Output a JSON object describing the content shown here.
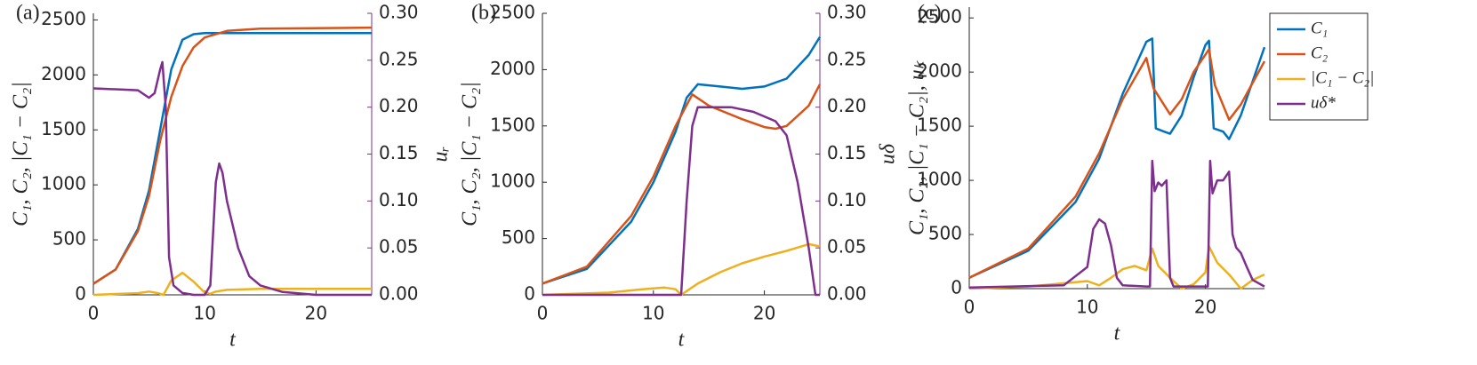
{
  "chart_data": [
    {
      "type": "line",
      "label": "(a)",
      "xlabel": "t",
      "ylabel": "C₁, C₂, |C₁ − C₂|",
      "y2label": "uᵣ",
      "xlim": [
        0,
        25
      ],
      "xticks": [
        0,
        10,
        20
      ],
      "ylim": [
        0,
        2560
      ],
      "yticks": [
        0,
        500,
        1000,
        1500,
        2000,
        2500
      ],
      "y2lim": [
        0,
        0.3
      ],
      "y2ticks": [
        {
          "value": 0,
          "label": "0.00"
        },
        {
          "value": 0.05,
          "label": "0.05"
        },
        {
          "value": 0.1,
          "label": "0.10"
        },
        {
          "value": 0.15,
          "label": "0.15"
        },
        {
          "value": 0.2,
          "label": "0.20"
        },
        {
          "value": 0.25,
          "label": "0.25"
        },
        {
          "value": 0.3,
          "label": "0.30"
        }
      ],
      "series": [
        {
          "color": "#0072BD",
          "x": [
            0,
            2,
            4,
            5,
            6,
            7,
            8,
            9,
            10,
            15,
            25
          ],
          "values": [
            100,
            230,
            600,
            950,
            1500,
            2050,
            2320,
            2370,
            2380,
            2380,
            2380
          ]
        },
        {
          "color": "#D95319",
          "x": [
            0,
            2,
            4,
            5,
            6,
            7,
            8,
            9,
            10,
            12,
            15,
            25
          ],
          "values": [
            100,
            230,
            580,
            900,
            1400,
            1800,
            2080,
            2250,
            2340,
            2400,
            2420,
            2430
          ]
        },
        {
          "color": "#EDB120",
          "x": [
            0,
            4,
            5,
            5.8,
            6.3,
            7,
            8,
            9,
            10,
            10.5,
            11,
            12,
            15,
            25
          ],
          "values": [
            0,
            15,
            30,
            15,
            0,
            130,
            200,
            120,
            20,
            10,
            30,
            45,
            55,
            55
          ]
        },
        {
          "color": "#7E2F8E",
          "axis": "y2",
          "x": [
            0,
            4,
            5,
            5.5,
            6,
            6.2,
            6.5,
            6.8,
            7.2,
            8,
            9,
            10,
            10.5,
            11,
            11.3,
            11.6,
            12,
            13,
            14,
            15,
            17,
            20,
            25
          ],
          "values": [
            0.22,
            0.218,
            0.21,
            0.215,
            0.24,
            0.248,
            0.2,
            0.04,
            0.01,
            0.002,
            0,
            0,
            0.01,
            0.12,
            0.14,
            0.13,
            0.1,
            0.05,
            0.02,
            0.01,
            0.003,
            0,
            0
          ]
        }
      ]
    },
    {
      "type": "line",
      "label": "(b)",
      "xlabel": "t",
      "ylabel": "C₁, C₂, |C₁ − C₂|",
      "y2label": "uδ",
      "xlim": [
        0,
        25
      ],
      "xticks": [
        0,
        10,
        20
      ],
      "ylim": [
        0,
        2500
      ],
      "yticks": [
        0,
        500,
        1000,
        1500,
        2000,
        2500
      ],
      "y2lim": [
        0,
        0.3
      ],
      "y2ticks": [
        {
          "value": 0,
          "label": "0.00"
        },
        {
          "value": 0.05,
          "label": "0.05"
        },
        {
          "value": 0.1,
          "label": "0.10"
        },
        {
          "value": 0.15,
          "label": "0.15"
        },
        {
          "value": 0.2,
          "label": "0.20"
        },
        {
          "value": 0.25,
          "label": "0.25"
        },
        {
          "value": 0.3,
          "label": "0.30"
        }
      ],
      "series": [
        {
          "color": "#0072BD",
          "x": [
            0,
            4,
            8,
            10,
            12,
            13,
            14,
            16,
            18,
            20,
            22,
            24,
            25
          ],
          "values": [
            100,
            230,
            650,
            1000,
            1450,
            1750,
            1870,
            1850,
            1830,
            1850,
            1920,
            2130,
            2290
          ]
        },
        {
          "color": "#D95319",
          "x": [
            0,
            4,
            8,
            10,
            12,
            13.5,
            15,
            18,
            20,
            21,
            22,
            24,
            25
          ],
          "values": [
            100,
            250,
            700,
            1050,
            1500,
            1780,
            1680,
            1560,
            1490,
            1475,
            1500,
            1680,
            1870
          ]
        },
        {
          "color": "#EDB120",
          "x": [
            0,
            6,
            9,
            11,
            12,
            12.5,
            14,
            16,
            18,
            20,
            22,
            24,
            25
          ],
          "values": [
            0,
            20,
            50,
            65,
            50,
            0,
            100,
            200,
            280,
            340,
            390,
            450,
            430
          ]
        },
        {
          "color": "#7E2F8E",
          "axis": "y2",
          "x": [
            0,
            10,
            12.5,
            13,
            13.5,
            14,
            17,
            19,
            21,
            22,
            23,
            24,
            24.6,
            25
          ],
          "values": [
            0,
            0,
            0,
            0.1,
            0.18,
            0.2,
            0.2,
            0.195,
            0.185,
            0.17,
            0.12,
            0.05,
            0,
            0
          ]
        }
      ]
    },
    {
      "type": "line",
      "label": "(c)",
      "xlabel": "t",
      "ylabel": "C₁, C₂, |C₁ − C₂|, uₖ",
      "xlim": [
        0,
        25
      ],
      "xticks": [
        0,
        10,
        20
      ],
      "ylim": [
        0,
        2600
      ],
      "yticks": [
        0,
        500,
        1000,
        1500,
        2000,
        2500
      ],
      "legend": "outside-right",
      "series": [
        {
          "name": "C₁",
          "color": "#0072BD",
          "x": [
            0,
            5,
            9,
            11,
            13,
            15,
            15.5,
            15.8,
            16.5,
            17,
            18,
            19,
            20,
            20.3,
            20.7,
            21.5,
            22,
            23,
            25
          ],
          "values": [
            100,
            350,
            800,
            1200,
            1800,
            2280,
            2310,
            1480,
            1450,
            1430,
            1600,
            1950,
            2250,
            2290,
            1480,
            1450,
            1380,
            1600,
            2230
          ]
        },
        {
          "name": "C₂",
          "color": "#D95319",
          "x": [
            0,
            5,
            9,
            11,
            13,
            15,
            15.6,
            17,
            18,
            19,
            20.3,
            20.8,
            22,
            23,
            25
          ],
          "values": [
            100,
            370,
            850,
            1250,
            1750,
            2130,
            1850,
            1610,
            1750,
            2000,
            2210,
            1880,
            1560,
            1700,
            2100
          ]
        },
        {
          "name": "|C₁ − C₂|",
          "color": "#EDB120",
          "x": [
            0,
            5,
            9,
            10,
            11,
            12,
            13,
            14,
            15,
            15.5,
            16,
            17,
            18,
            19,
            20,
            20.3,
            21,
            22,
            23,
            24,
            25
          ],
          "values": [
            0,
            20,
            60,
            70,
            30,
            100,
            180,
            210,
            170,
            370,
            210,
            100,
            0,
            40,
            150,
            390,
            240,
            130,
            0,
            80,
            130
          ]
        },
        {
          "name": "uδ*",
          "color": "#7E2F8E",
          "x": [
            0,
            8,
            10,
            10.5,
            11,
            11.5,
            12,
            12.5,
            13,
            15,
            15.3,
            15.5,
            15.7,
            16,
            16.3,
            16.7,
            17,
            17.3,
            19,
            20.2,
            20.4,
            20.6,
            21,
            21.5,
            22,
            22.3,
            22.6,
            23,
            23.5,
            24,
            25
          ],
          "values": [
            10,
            30,
            200,
            550,
            640,
            600,
            400,
            100,
            30,
            20,
            20,
            1180,
            900,
            980,
            950,
            1000,
            100,
            20,
            20,
            20,
            1180,
            880,
            1000,
            1000,
            1080,
            500,
            380,
            330,
            200,
            80,
            20
          ]
        }
      ]
    }
  ]
}
